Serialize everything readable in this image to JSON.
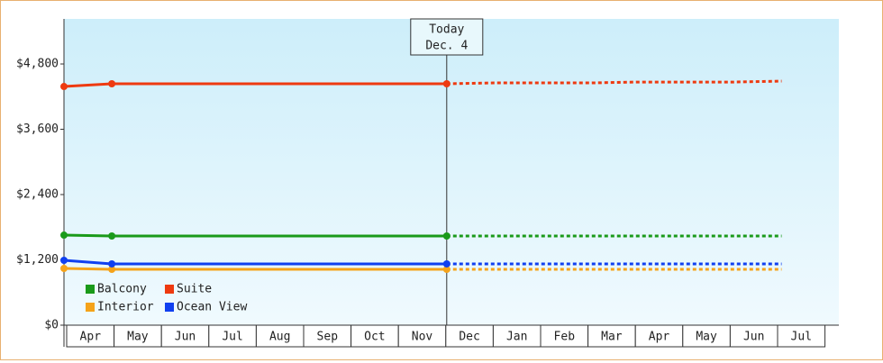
{
  "chart_data": {
    "type": "line",
    "categories": [
      "Apr",
      "May",
      "Jun",
      "Jul",
      "Aug",
      "Sep",
      "Oct",
      "Nov",
      "Dec",
      "Jan",
      "Feb",
      "Mar",
      "Apr",
      "May",
      "Jun",
      "Jul"
    ],
    "series": [
      {
        "name": "Balcony",
        "color": "#1a9a1a",
        "values": [
          1655,
          1639,
          1639,
          1639,
          1639,
          1639,
          1639,
          1639,
          1639,
          1639,
          1639,
          1639,
          1639,
          1639,
          1639,
          1639
        ]
      },
      {
        "name": "Suite",
        "color": "#ee3a10",
        "values": [
          4386,
          4436,
          4436,
          4436,
          4436,
          4436,
          4436,
          4436,
          4436,
          4452,
          4452,
          4452,
          4468,
          4468,
          4468,
          4485
        ]
      },
      {
        "name": "Interior",
        "color": "#f5a31a",
        "values": [
          1043,
          1026,
          1026,
          1026,
          1026,
          1026,
          1026,
          1026,
          1026,
          1026,
          1026,
          1026,
          1026,
          1026,
          1026,
          1026
        ]
      },
      {
        "name": "Ocean View",
        "color": "#1040f0",
        "values": [
          1192,
          1126,
          1126,
          1126,
          1126,
          1126,
          1126,
          1126,
          1126,
          1126,
          1126,
          1126,
          1126,
          1126,
          1126,
          1126
        ]
      }
    ],
    "today": {
      "label": "Today",
      "date": "Dec. 4",
      "x": 8
    },
    "ylim": [
      0,
      5628
    ],
    "yticks": [
      {
        "value": 0,
        "label": "$0"
      },
      {
        "value": 1200,
        "label": "$1,200"
      },
      {
        "value": 2400,
        "label": "$2,400"
      },
      {
        "value": 3600,
        "label": "$3,600"
      },
      {
        "value": 4800,
        "label": "$4,800"
      }
    ],
    "grid": false,
    "legend": "bottom-left"
  }
}
